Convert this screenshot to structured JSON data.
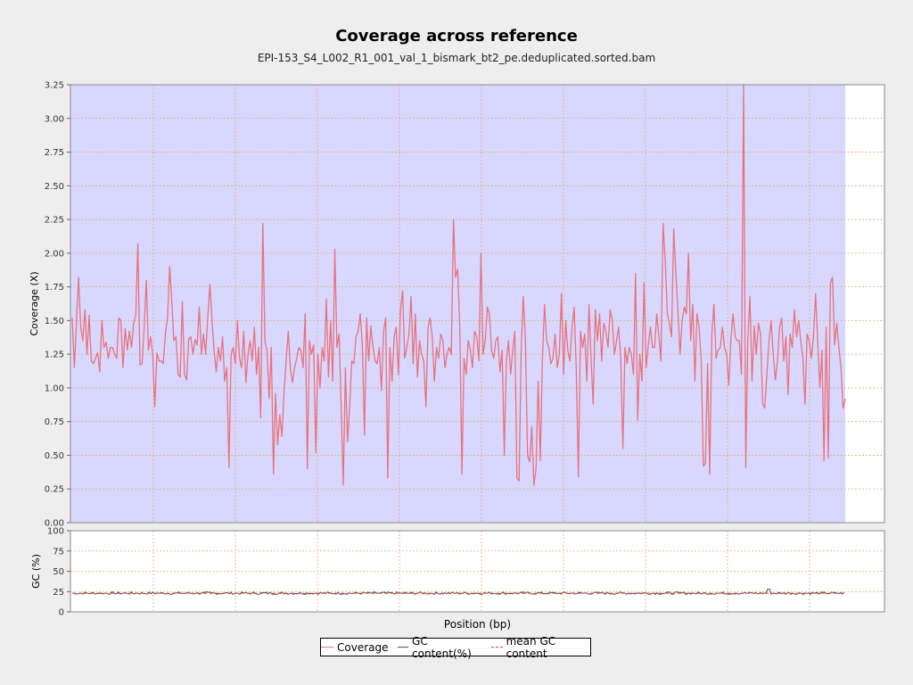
{
  "chart_data": [
    {
      "type": "area",
      "title": "Coverage across reference",
      "subtitle": "EPI-153_S4_L002_R1_001_val_1_bismark_bt2_pe.deduplicated.sorted.bam",
      "xlabel": "Position (bp)",
      "ylabel": "Coverage (X)",
      "ylim": [
        0,
        3.25
      ],
      "y_ticks": [
        "0.00",
        "0.25",
        "0.50",
        "0.75",
        "1.00",
        "1.25",
        "1.50",
        "1.75",
        "2.00",
        "2.25",
        "2.50",
        "2.75",
        "3.00",
        "3.25"
      ],
      "grid": true,
      "x_tick_labels_shown": false,
      "coverage_fill_color": "#d8d8ff",
      "series": [
        {
          "name": "Coverage",
          "color": "#e8727c",
          "values": [
            1.52,
            1.15,
            1.5,
            1.82,
            1.45,
            1.35,
            1.58,
            1.25,
            1.54,
            1.2,
            1.18,
            1.22,
            1.26,
            1.12,
            1.5,
            1.3,
            1.34,
            1.22,
            1.3,
            1.3,
            1.25,
            1.22,
            1.52,
            1.5,
            1.15,
            1.44,
            1.28,
            1.42,
            1.3,
            1.48,
            1.54,
            2.07,
            1.17,
            1.18,
            1.46,
            1.8,
            1.28,
            1.38,
            1.25,
            0.86,
            1.26,
            1.2,
            1.2,
            1.18,
            1.4,
            1.52,
            1.9,
            1.65,
            1.35,
            1.38,
            1.1,
            1.08,
            1.64,
            1.1,
            1.06,
            1.36,
            1.38,
            1.25,
            1.36,
            1.32,
            1.6,
            1.25,
            1.4,
            1.25,
            1.52,
            1.77,
            1.5,
            1.28,
            1.12,
            1.3,
            1.2,
            1.38,
            1.05,
            1.15,
            0.41,
            1.25,
            1.3,
            1.18,
            1.5,
            1.22,
            1.15,
            1.42,
            1.04,
            1.25,
            1.35,
            1.2,
            1.45,
            1.1,
            1.3,
            0.78,
            2.22,
            1.34,
            1.28,
            0.92,
            1.3,
            0.36,
            0.96,
            0.58,
            0.8,
            0.64,
            0.96,
            1.2,
            1.42,
            1.15,
            1.04,
            1.15,
            1.22,
            1.3,
            1.28,
            1.15,
            1.55,
            0.4,
            1.35,
            1.25,
            1.32,
            0.52,
            1.25,
            1.0,
            1.3,
            1.2,
            1.66,
            1.08,
            1.5,
            1.05,
            2.03,
            1.3,
            1.4,
            0.85,
            0.28,
            1.15,
            0.6,
            0.86,
            1.2,
            1.18,
            1.38,
            1.42,
            1.55,
            1.32,
            0.65,
            1.52,
            1.2,
            1.46,
            1.3,
            1.2,
            1.18,
            1.3,
            0.98,
            1.42,
            1.52,
            0.33,
            1.3,
            1.05,
            1.38,
            1.45,
            1.1,
            1.58,
            1.72,
            1.22,
            1.3,
            1.4,
            1.68,
            1.18,
            1.55,
            1.08,
            1.35,
            1.25,
            1.2,
            0.86,
            1.45,
            1.52,
            1.38,
            1.05,
            1.3,
            1.22,
            1.4,
            1.35,
            1.15,
            1.25,
            1.3,
            1.25,
            2.25,
            1.82,
            1.88,
            1.45,
            0.36,
            1.22,
            1.1,
            1.35,
            1.28,
            1.15,
            1.42,
            1.38,
            1.2,
            2.0,
            1.25,
            1.35,
            1.6,
            1.55,
            1.28,
            1.22,
            1.35,
            1.38,
            1.12,
            1.28,
            0.5,
            1.2,
            1.35,
            1.1,
            1.28,
            1.42,
            0.33,
            0.31,
            1.3,
            1.68,
            1.35,
            0.5,
            0.45,
            0.71,
            0.28,
            0.4,
            1.05,
            0.46,
            1.2,
            1.62,
            1.35,
            1.3,
            1.18,
            1.22,
            1.4,
            1.15,
            1.25,
            1.7,
            1.1,
            1.5,
            1.28,
            1.2,
            1.45,
            1.6,
            1.15,
            0.34,
            1.42,
            1.3,
            1.4,
            1.05,
            1.62,
            1.2,
            0.88,
            1.58,
            1.35,
            1.55,
            1.2,
            1.48,
            1.42,
            1.3,
            1.58,
            1.5,
            1.25,
            1.35,
            1.45,
            1.22,
            0.55,
            1.3,
            1.18,
            1.3,
            1.25,
            1.1,
            1.85,
            0.76,
            1.25,
            1.05,
            1.78,
            1.15,
            1.32,
            1.45,
            1.3,
            1.3,
            1.55,
            1.38,
            1.2,
            2.22,
            1.95,
            1.55,
            1.48,
            1.38,
            2.18,
            1.85,
            1.58,
            1.25,
            1.5,
            1.6,
            1.55,
            2.0,
            1.35,
            1.62,
            1.05,
            1.55,
            1.45,
            1.2,
            0.42,
            0.44,
            1.18,
            0.36,
            1.4,
            1.62,
            1.22,
            1.28,
            1.3,
            1.45,
            1.3,
            1.25,
            1.02,
            1.35,
            1.55,
            1.38,
            1.35,
            1.35,
            1.1,
            3.25,
            0.41,
            1.35,
            1.68,
            1.05,
            1.46,
            1.25,
            1.48,
            1.4,
            0.88,
            0.85,
            1.1,
            1.35,
            1.5,
            1.25,
            1.06,
            1.2,
            1.45,
            1.52,
            1.2,
            1.38,
            0.95,
            1.4,
            1.3,
            1.58,
            1.38,
            1.5,
            1.35,
            1.22,
            0.88,
            1.4,
            1.35,
            1.22,
            1.38,
            1.7,
            1.35,
            1.0,
            1.28,
            0.46,
            1.45,
            0.48,
            1.78,
            1.82,
            1.32,
            1.48,
            1.3,
            1.15,
            0.85,
            0.92
          ]
        }
      ]
    },
    {
      "type": "line",
      "ylabel": "GC (%)",
      "ylim": [
        0,
        100
      ],
      "y_ticks": [
        "0",
        "25",
        "50",
        "75",
        "100"
      ],
      "grid": true,
      "series": [
        {
          "name": "GC content(%)",
          "color": "#4a5050",
          "mean_value": 23
        },
        {
          "name": "mean GC content",
          "color": "#e04040",
          "value": 23
        }
      ]
    }
  ],
  "legend": {
    "position": "bottom",
    "items": [
      {
        "label": "Coverage",
        "color": "#e8727c",
        "style": "solid"
      },
      {
        "label": "GC content(%)",
        "color": "#4a5050",
        "style": "solid"
      },
      {
        "label": "mean GC content",
        "color": "#e04040",
        "style": "dashed"
      }
    ]
  }
}
